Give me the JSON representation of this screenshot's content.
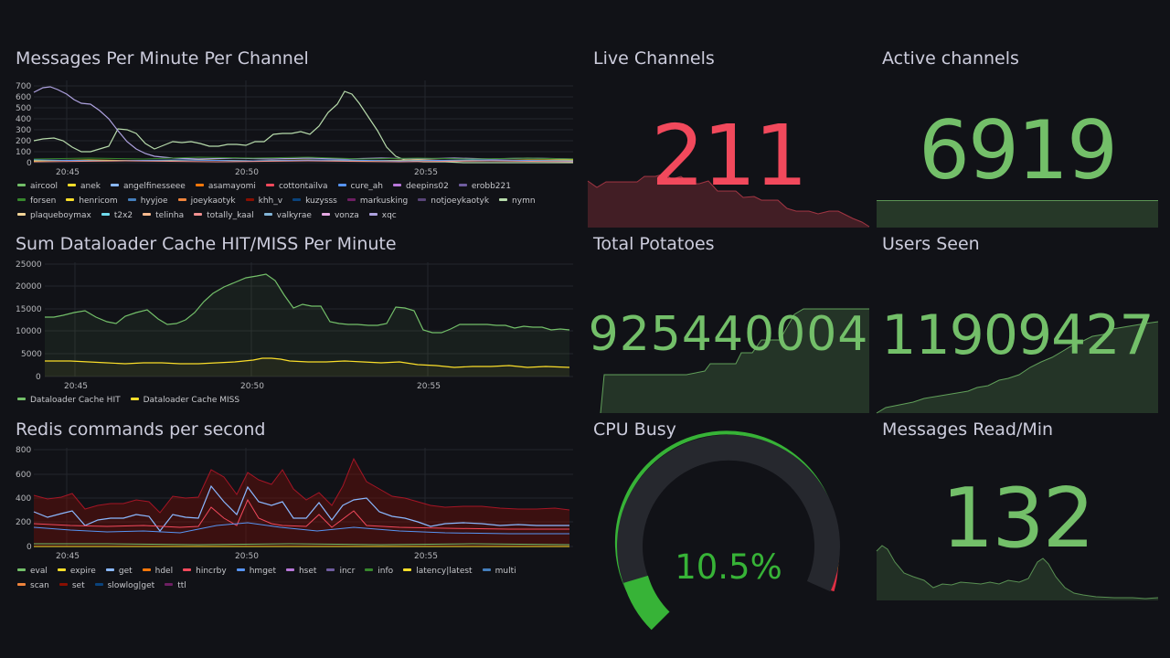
{
  "colors": {
    "bg": "#111217",
    "grid": "#24262c",
    "green": "#73bf69",
    "red": "#f2495c",
    "text": "#ccccdc"
  },
  "panels": {
    "messages": {
      "title": "Messages Per Minute Per Channel",
      "y_ticks": [
        "700",
        "600",
        "500",
        "400",
        "300",
        "200",
        "100",
        "0"
      ],
      "x_ticks": [
        "20:45",
        "20:50",
        "20:55"
      ],
      "legend": [
        {
          "name": "aircool",
          "color": "#73bf69"
        },
        {
          "name": "anek",
          "color": "#fade2a"
        },
        {
          "name": "angelfinesseee",
          "color": "#8ab8ff"
        },
        {
          "name": "asamayomi",
          "color": "#ff780a"
        },
        {
          "name": "cottontailva",
          "color": "#f2495c"
        },
        {
          "name": "cure_ah",
          "color": "#5794f2"
        },
        {
          "name": "deepins02",
          "color": "#b877d9"
        },
        {
          "name": "erobb221",
          "color": "#705da0"
        },
        {
          "name": "forsen",
          "color": "#37872d"
        },
        {
          "name": "henricom",
          "color": "#fade2a"
        },
        {
          "name": "hyyjoe",
          "color": "#447ebc"
        },
        {
          "name": "joeykaotyk",
          "color": "#ef843c"
        },
        {
          "name": "khh_v",
          "color": "#890f02"
        },
        {
          "name": "kuzysss",
          "color": "#0a437c"
        },
        {
          "name": "markusking",
          "color": "#6d1f62"
        },
        {
          "name": "notjoeykaotyk",
          "color": "#584477"
        },
        {
          "name": "nymn",
          "color": "#b7dbab"
        },
        {
          "name": "plaqueboymax",
          "color": "#f4d598"
        },
        {
          "name": "t2x2",
          "color": "#70dbed"
        },
        {
          "name": "telinha",
          "color": "#f9ba8f"
        },
        {
          "name": "totally_kaal",
          "color": "#f29191"
        },
        {
          "name": "valkyrae",
          "color": "#82b5d8"
        },
        {
          "name": "vonza",
          "color": "#e5a8e2"
        },
        {
          "name": "xqc",
          "color": "#aea2e0"
        }
      ]
    },
    "cache": {
      "title": "Sum Dataloader Cache HIT/MISS Per Minute",
      "y_ticks": [
        "25000",
        "20000",
        "15000",
        "10000",
        "5000",
        "0"
      ],
      "x_ticks": [
        "20:45",
        "20:50",
        "20:55"
      ],
      "legend": [
        {
          "name": "Dataloader Cache HIT",
          "color": "#73bf69"
        },
        {
          "name": "Dataloader Cache MISS",
          "color": "#fade2a"
        }
      ]
    },
    "redis": {
      "title": "Redis commands per second",
      "y_ticks": [
        "800",
        "600",
        "400",
        "200",
        "0"
      ],
      "x_ticks": [
        "20:45",
        "20:50",
        "20:55"
      ],
      "legend": [
        {
          "name": "eval",
          "color": "#73bf69"
        },
        {
          "name": "expire",
          "color": "#fade2a"
        },
        {
          "name": "get",
          "color": "#8ab8ff"
        },
        {
          "name": "hdel",
          "color": "#ff780a"
        },
        {
          "name": "hincrby",
          "color": "#f2495c"
        },
        {
          "name": "hmget",
          "color": "#5794f2"
        },
        {
          "name": "hset",
          "color": "#b877d9"
        },
        {
          "name": "incr",
          "color": "#705da0"
        },
        {
          "name": "info",
          "color": "#37872d"
        },
        {
          "name": "latency|latest",
          "color": "#fade2a"
        },
        {
          "name": "multi",
          "color": "#447ebc"
        },
        {
          "name": "scan",
          "color": "#ef843c"
        },
        {
          "name": "set",
          "color": "#890f02"
        },
        {
          "name": "slowlog|get",
          "color": "#0a437c"
        },
        {
          "name": "ttl",
          "color": "#6d1f62"
        }
      ]
    },
    "live_channels": {
      "title": "Live Channels",
      "value": "211",
      "color": "#f2495c"
    },
    "active_channels": {
      "title": "Active channels",
      "value": "6919",
      "color": "#73bf69"
    },
    "total_potatoes": {
      "title": "Total Potatoes",
      "value": "925440004",
      "color": "#73bf69"
    },
    "users_seen": {
      "title": "Users Seen",
      "value": "11909427",
      "color": "#73bf69"
    },
    "cpu_busy": {
      "title": "CPU Busy",
      "value": "10.5%",
      "percent": 10.5,
      "color": "#37b337"
    },
    "messages_read": {
      "title": "Messages Read/Min",
      "value": "132",
      "color": "#73bf69"
    }
  }
}
